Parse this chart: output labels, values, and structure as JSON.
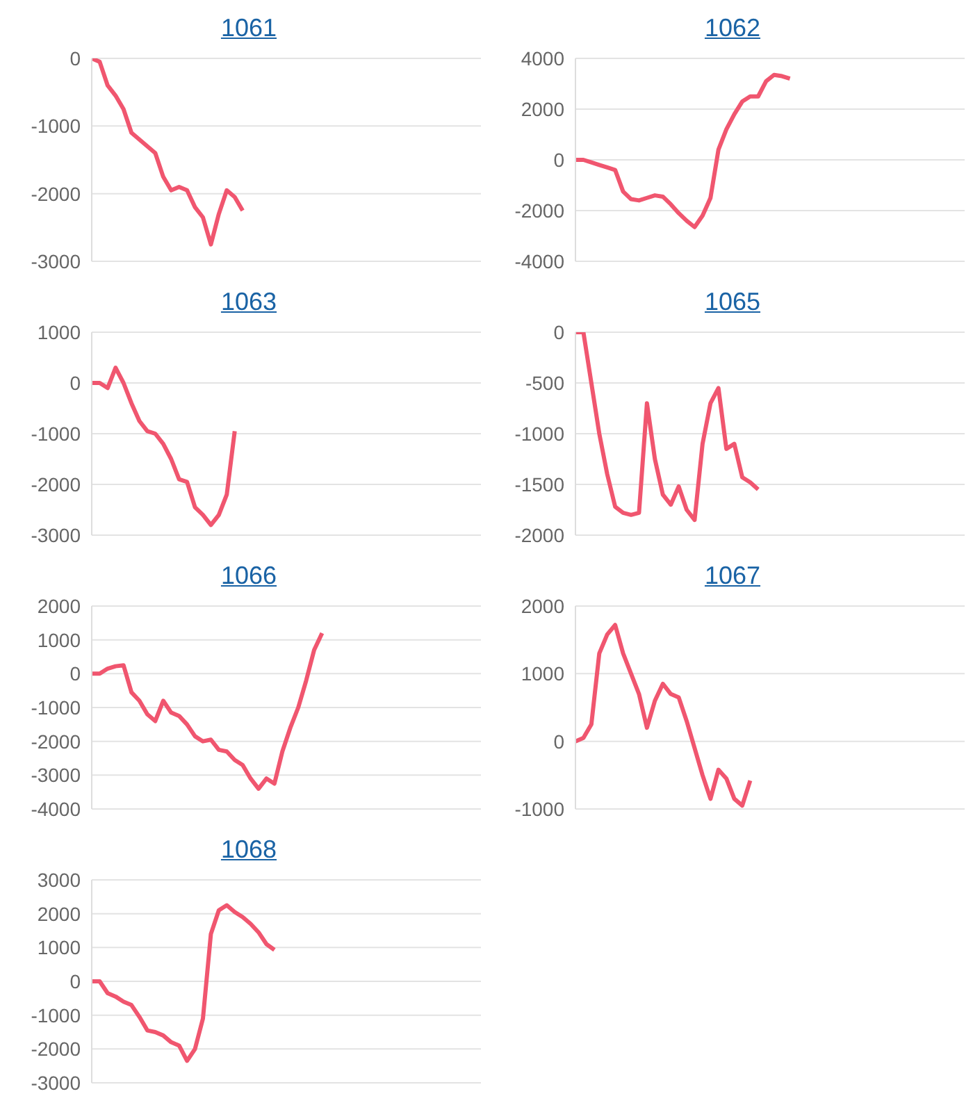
{
  "chart_data": [
    {
      "type": "line",
      "title": "1061",
      "color": "#f0566f",
      "grid": "y",
      "tick_labels": "y",
      "ylim": [
        -3000,
        0
      ],
      "yticks": [
        -3000,
        -2000,
        -1000,
        0
      ],
      "categories": [
        null,
        null,
        null,
        null,
        null,
        null,
        null,
        null,
        null,
        null,
        null,
        null,
        null,
        null,
        null,
        null,
        null,
        null,
        null,
        null,
        null,
        null,
        null,
        null,
        null,
        null,
        null,
        null,
        null,
        null,
        null,
        null,
        null,
        null,
        null,
        null,
        null,
        null,
        null,
        null,
        null,
        null,
        null,
        null,
        null,
        null,
        null,
        null,
        null,
        null
      ],
      "values": [
        0,
        -50,
        -400,
        -550,
        -750,
        -1100,
        -1200,
        -1300,
        -1400,
        -1750,
        -1950,
        -1900,
        -1950,
        -2200,
        -2350,
        -2750,
        -2300,
        -1950,
        -2050,
        -2250,
        null,
        null,
        null,
        null,
        null,
        null,
        null,
        null,
        null,
        null,
        null,
        null,
        null,
        null,
        null,
        null,
        null,
        null,
        null,
        null,
        null,
        null,
        null,
        null,
        null,
        null,
        null,
        null,
        null,
        null
      ]
    },
    {
      "type": "line",
      "title": "1062",
      "color": "#f0566f",
      "grid": "y",
      "tick_labels": "y",
      "ylim": [
        -4000,
        4000
      ],
      "yticks": [
        -4000,
        -2000,
        0,
        2000,
        4000
      ],
      "categories": [
        null,
        null,
        null,
        null,
        null,
        null,
        null,
        null,
        null,
        null,
        null,
        null,
        null,
        null,
        null,
        null,
        null,
        null,
        null,
        null,
        null,
        null,
        null,
        null,
        null,
        null,
        null,
        null,
        null,
        null,
        null,
        null,
        null,
        null,
        null,
        null,
        null,
        null,
        null,
        null,
        null,
        null,
        null,
        null,
        null,
        null,
        null,
        null,
        null,
        null
      ],
      "values": [
        0,
        0,
        -100,
        -200,
        -300,
        -400,
        -1250,
        -1550,
        -1600,
        -1500,
        -1400,
        -1450,
        -1750,
        -2100,
        -2400,
        -2650,
        -2200,
        -1500,
        400,
        1200,
        1800,
        2300,
        2500,
        2500,
        3100,
        3350,
        3300,
        3200,
        null,
        null,
        null,
        null,
        null,
        null,
        null,
        null,
        null,
        null,
        null,
        null,
        null,
        null,
        null,
        null,
        null,
        null,
        null,
        null,
        null,
        null
      ]
    },
    {
      "type": "line",
      "title": "1063",
      "color": "#f0566f",
      "grid": "y",
      "tick_labels": "y",
      "ylim": [
        -3000,
        1000
      ],
      "yticks": [
        -3000,
        -2000,
        -1000,
        0,
        1000
      ],
      "categories": [
        null,
        null,
        null,
        null,
        null,
        null,
        null,
        null,
        null,
        null,
        null,
        null,
        null,
        null,
        null,
        null,
        null,
        null,
        null,
        null,
        null,
        null,
        null,
        null,
        null,
        null,
        null,
        null,
        null,
        null,
        null,
        null,
        null,
        null,
        null,
        null,
        null,
        null,
        null,
        null,
        null,
        null,
        null,
        null,
        null,
        null,
        null,
        null,
        null,
        null
      ],
      "values": [
        0,
        0,
        -100,
        300,
        0,
        -400,
        -750,
        -950,
        -1000,
        -1200,
        -1500,
        -1900,
        -1950,
        -2450,
        -2600,
        -2800,
        -2600,
        -2200,
        -950,
        null,
        null,
        null,
        null,
        null,
        null,
        null,
        null,
        null,
        null,
        null,
        null,
        null,
        null,
        null,
        null,
        null,
        null,
        null,
        null,
        null,
        null,
        null,
        null,
        null,
        null,
        null,
        null,
        null,
        null,
        null
      ]
    },
    {
      "type": "line",
      "title": "1065",
      "color": "#f0566f",
      "grid": "y",
      "tick_labels": "y",
      "ylim": [
        -2000,
        0
      ],
      "yticks": [
        -2000,
        -1500,
        -1000,
        -500,
        0
      ],
      "categories": [
        null,
        null,
        null,
        null,
        null,
        null,
        null,
        null,
        null,
        null,
        null,
        null,
        null,
        null,
        null,
        null,
        null,
        null,
        null,
        null,
        null,
        null,
        null,
        null,
        null,
        null,
        null,
        null,
        null,
        null,
        null,
        null,
        null,
        null,
        null,
        null,
        null,
        null,
        null,
        null,
        null,
        null,
        null,
        null,
        null,
        null,
        null,
        null,
        null,
        null
      ],
      "values": [
        0,
        0,
        -500,
        -1000,
        -1400,
        -1720,
        -1780,
        -1800,
        -1780,
        -700,
        -1250,
        -1600,
        -1700,
        -1520,
        -1750,
        -1850,
        -1100,
        -700,
        -550,
        -1150,
        -1100,
        -1430,
        -1480,
        -1550,
        null,
        null,
        null,
        null,
        null,
        null,
        null,
        null,
        null,
        null,
        null,
        null,
        null,
        null,
        null,
        null,
        null,
        null,
        null,
        null,
        null,
        null,
        null,
        null,
        null,
        null
      ]
    },
    {
      "type": "line",
      "title": "1066",
      "color": "#f0566f",
      "grid": "y",
      "tick_labels": "y",
      "ylim": [
        -4000,
        2000
      ],
      "yticks": [
        -4000,
        -3000,
        -2000,
        -1000,
        0,
        1000,
        2000
      ],
      "categories": [
        null,
        null,
        null,
        null,
        null,
        null,
        null,
        null,
        null,
        null,
        null,
        null,
        null,
        null,
        null,
        null,
        null,
        null,
        null,
        null,
        null,
        null,
        null,
        null,
        null,
        null,
        null,
        null,
        null,
        null,
        null,
        null,
        null,
        null,
        null,
        null,
        null,
        null,
        null,
        null,
        null,
        null,
        null,
        null,
        null,
        null,
        null,
        null,
        null,
        null
      ],
      "values": [
        0,
        0,
        150,
        220,
        250,
        -550,
        -800,
        -1200,
        -1400,
        -800,
        -1150,
        -1250,
        -1500,
        -1850,
        -2000,
        -1950,
        -2250,
        -2300,
        -2550,
        -2700,
        -3100,
        -3400,
        -3100,
        -3250,
        -2300,
        -1600,
        -1000,
        -200,
        700,
        1200,
        null,
        null,
        null,
        null,
        null,
        null,
        null,
        null,
        null,
        null,
        null,
        null,
        null,
        null,
        null,
        null,
        null,
        null,
        null,
        null
      ]
    },
    {
      "type": "line",
      "title": "1067",
      "color": "#f0566f",
      "grid": "y",
      "tick_labels": "y",
      "ylim": [
        -1000,
        2000
      ],
      "yticks": [
        -1000,
        0,
        1000,
        2000
      ],
      "categories": [
        null,
        null,
        null,
        null,
        null,
        null,
        null,
        null,
        null,
        null,
        null,
        null,
        null,
        null,
        null,
        null,
        null,
        null,
        null,
        null,
        null,
        null,
        null,
        null,
        null,
        null,
        null,
        null,
        null,
        null,
        null,
        null,
        null,
        null,
        null,
        null,
        null,
        null,
        null,
        null,
        null,
        null,
        null,
        null,
        null,
        null,
        null,
        null,
        null,
        null
      ],
      "values": [
        0,
        50,
        250,
        1300,
        1580,
        1720,
        1300,
        1000,
        700,
        200,
        600,
        850,
        700,
        650,
        300,
        -100,
        -500,
        -850,
        -420,
        -550,
        -850,
        -950,
        -580,
        null,
        null,
        null,
        null,
        null,
        null,
        null,
        null,
        null,
        null,
        null,
        null,
        null,
        null,
        null,
        null,
        null,
        null,
        null,
        null,
        null,
        null,
        null,
        null,
        null,
        null,
        null
      ]
    },
    {
      "type": "line",
      "title": "1068",
      "color": "#f0566f",
      "grid": "y",
      "tick_labels": "y",
      "ylim": [
        -3000,
        3000
      ],
      "yticks": [
        -3000,
        -2000,
        -1000,
        0,
        1000,
        2000,
        3000
      ],
      "categories": [
        null,
        null,
        null,
        null,
        null,
        null,
        null,
        null,
        null,
        null,
        null,
        null,
        null,
        null,
        null,
        null,
        null,
        null,
        null,
        null,
        null,
        null,
        null,
        null,
        null,
        null,
        null,
        null,
        null,
        null,
        null,
        null,
        null,
        null,
        null,
        null,
        null,
        null,
        null,
        null,
        null,
        null,
        null,
        null,
        null,
        null,
        null,
        null,
        null,
        null
      ],
      "values": [
        0,
        0,
        -350,
        -450,
        -600,
        -700,
        -1050,
        -1450,
        -1500,
        -1600,
        -1800,
        -1900,
        -2350,
        -2000,
        -1100,
        1400,
        2100,
        2250,
        2050,
        1900,
        1700,
        1450,
        1100,
        930,
        null,
        null,
        null,
        null,
        null,
        null,
        null,
        null,
        null,
        null,
        null,
        null,
        null,
        null,
        null,
        null,
        null,
        null,
        null,
        null,
        null,
        null,
        null,
        null,
        null,
        null
      ]
    }
  ]
}
